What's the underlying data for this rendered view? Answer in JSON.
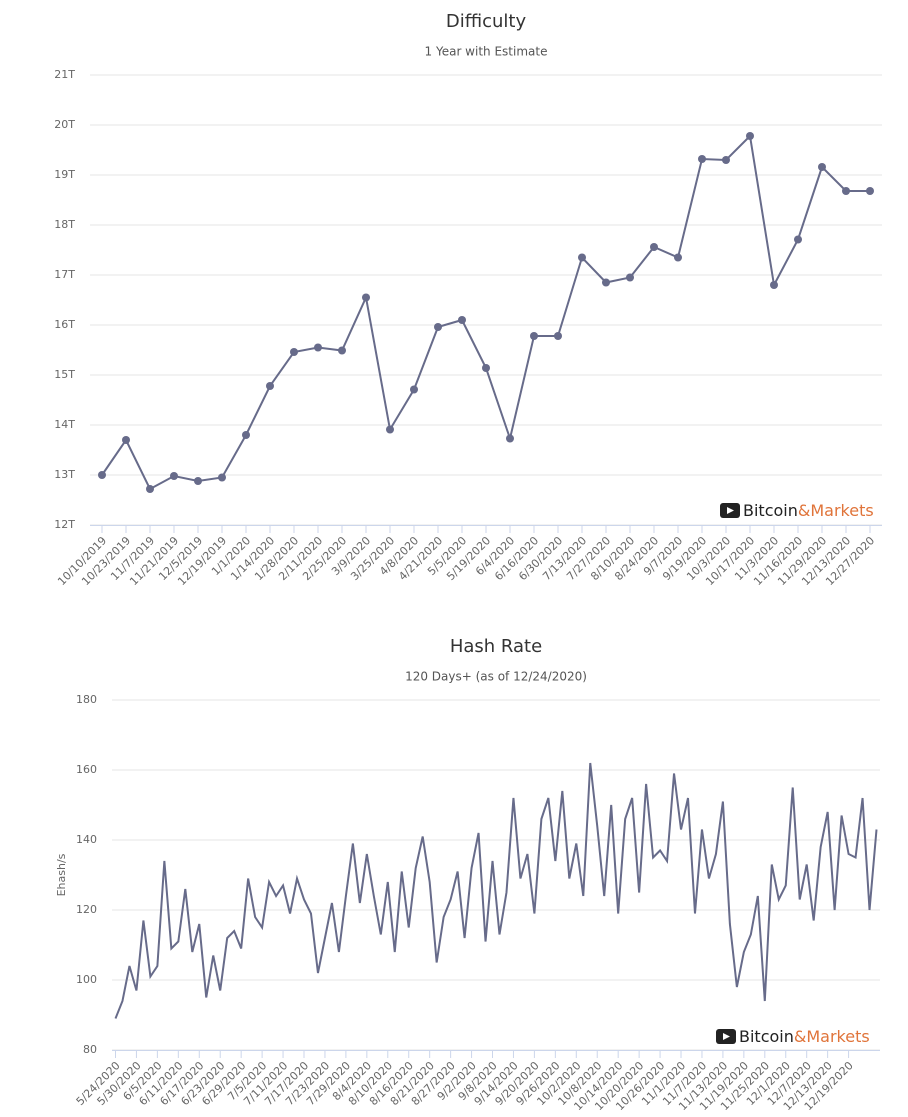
{
  "chart_data": [
    {
      "type": "line",
      "title": "Difficulty",
      "subtitle": "1 Year with Estimate",
      "color": "#676b8a",
      "markers": true,
      "grid": true,
      "watermark": [
        "Bitcoin",
        "&Markets"
      ],
      "categories": [
        "10/10/2019",
        "10/23/2019",
        "11/7/2019",
        "11/21/2019",
        "12/5/2019",
        "12/19/2019",
        "1/1/2020",
        "1/14/2020",
        "1/28/2020",
        "2/11/2020",
        "2/25/2020",
        "3/9/2020",
        "3/25/2020",
        "4/8/2020",
        "4/21/2020",
        "5/5/2020",
        "5/19/2020",
        "6/4/2020",
        "6/16/2020",
        "6/30/2020",
        "7/13/2020",
        "7/27/2020",
        "8/10/2020",
        "8/24/2020",
        "9/7/2020",
        "9/19/2020",
        "10/3/2020",
        "10/17/2020",
        "11/3/2020",
        "11/16/2020",
        "11/29/2020",
        "12/13/2020",
        "12/27/2020"
      ],
      "values": [
        13.0,
        13.7,
        12.72,
        12.98,
        12.88,
        12.95,
        13.8,
        14.78,
        15.46,
        15.55,
        15.49,
        16.55,
        13.91,
        14.71,
        15.96,
        16.1,
        15.14,
        13.73,
        15.78,
        15.78,
        17.35,
        16.85,
        16.95,
        17.56,
        17.35,
        19.32,
        19.3,
        19.78,
        16.8,
        17.71,
        19.16,
        18.68,
        18.68
      ],
      "ylim": [
        12,
        21
      ],
      "yticks": [
        {
          "value": 12,
          "label": "12T"
        },
        {
          "value": 13,
          "label": "13T"
        },
        {
          "value": 14,
          "label": "14T"
        },
        {
          "value": 15,
          "label": "15T"
        },
        {
          "value": 16,
          "label": "16T"
        },
        {
          "value": 17,
          "label": "17T"
        },
        {
          "value": 18,
          "label": "18T"
        },
        {
          "value": 19,
          "label": "19T"
        },
        {
          "value": 20,
          "label": "20T"
        },
        {
          "value": 21,
          "label": "21T"
        }
      ]
    },
    {
      "type": "line",
      "title": "Hash Rate",
      "subtitle": "120 Days+ (as of 12/24/2020)",
      "y_label": "Ehash/s",
      "color": "#676b8a",
      "markers": false,
      "grid": true,
      "watermark": [
        "Bitcoin",
        "&Markets"
      ],
      "categories": [
        "5/24/2020",
        null,
        null,
        "5/30/2020",
        null,
        null,
        "6/5/2020",
        null,
        null,
        "6/11/2020",
        null,
        null,
        "6/17/2020",
        null,
        null,
        "6/23/2020",
        null,
        null,
        "6/29/2020",
        null,
        null,
        "7/5/2020",
        null,
        null,
        "7/11/2020",
        null,
        null,
        "7/17/2020",
        null,
        null,
        "7/23/2020",
        null,
        null,
        "7/29/2020",
        null,
        null,
        "8/4/2020",
        null,
        null,
        "8/10/2020",
        null,
        null,
        "8/16/2020",
        null,
        null,
        "8/21/2020",
        null,
        null,
        "8/27/2020",
        null,
        null,
        "9/2/2020",
        null,
        null,
        "9/8/2020",
        null,
        null,
        "9/14/2020",
        null,
        null,
        "9/20/2020",
        null,
        null,
        "9/26/2020",
        null,
        null,
        "10/2/2020",
        null,
        null,
        "10/8/2020",
        null,
        null,
        "10/14/2020",
        null,
        null,
        "10/20/2020",
        null,
        null,
        "10/26/2020",
        null,
        null,
        "11/1/2020",
        null,
        null,
        "11/7/2020",
        null,
        null,
        "11/13/2020",
        null,
        null,
        "11/19/2020",
        null,
        null,
        "11/25/2020",
        null,
        null,
        "12/1/2020",
        null,
        null,
        "12/7/2020",
        null,
        null,
        "12/13/2020",
        null,
        null,
        "12/19/2020",
        null,
        null,
        null,
        null
      ],
      "values": [
        89,
        94,
        104,
        97,
        117,
        101,
        104,
        134,
        109,
        111,
        126,
        108,
        116,
        95,
        107,
        97,
        112,
        114,
        109,
        129,
        118,
        115,
        128,
        124,
        127,
        119,
        129,
        123,
        119,
        102,
        112,
        122,
        108,
        124,
        139,
        122,
        136,
        124,
        113,
        128,
        108,
        131,
        115,
        132,
        141,
        128,
        105,
        118,
        123,
        131,
        112,
        132,
        142,
        111,
        134,
        113,
        125,
        152,
        129,
        136,
        119,
        146,
        152,
        134,
        154,
        129,
        139,
        124,
        162,
        144,
        124,
        150,
        119,
        146,
        152,
        125,
        156,
        135,
        137,
        134,
        159,
        143,
        152,
        119,
        143,
        129,
        136,
        151,
        116,
        98,
        108,
        113,
        124,
        94,
        133,
        123,
        127,
        155,
        123,
        133,
        117,
        138,
        148,
        120,
        147,
        136,
        135,
        152,
        120,
        143
      ],
      "ylim": [
        80,
        180
      ],
      "yticks": [
        80,
        100,
        120,
        140,
        160,
        180
      ]
    }
  ]
}
